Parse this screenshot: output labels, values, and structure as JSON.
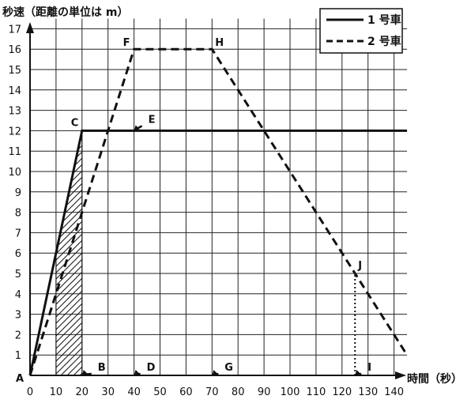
{
  "chart_data": {
    "type": "line",
    "ylabel": "秒速（距離の単位は m）",
    "xlabel": "時間（秒）",
    "xlim": [
      0,
      145
    ],
    "ylim": [
      0,
      17.5
    ],
    "x_ticks": [
      0,
      10,
      20,
      30,
      40,
      50,
      60,
      70,
      80,
      90,
      100,
      110,
      120,
      130,
      140
    ],
    "y_ticks": [
      1,
      2,
      3,
      4,
      5,
      6,
      7,
      8,
      9,
      10,
      11,
      12,
      13,
      14,
      15,
      16,
      17
    ],
    "grid": true,
    "legend_position": "top-right",
    "series": [
      {
        "name": "1 号車",
        "style": "solid",
        "x": [
          0,
          20,
          145
        ],
        "y": [
          0,
          12,
          12
        ]
      },
      {
        "name": "2 号車",
        "style": "dashed",
        "x": [
          0,
          40,
          70,
          145
        ],
        "y": [
          0,
          16,
          16,
          1
        ]
      }
    ],
    "hatched_region": {
      "x_from": 10,
      "x_to": 20
    },
    "vertical_dotted_line": {
      "x": 125,
      "y_from": 0,
      "y_to": 5
    },
    "points": [
      {
        "label": "A",
        "x": 0,
        "y": 0
      },
      {
        "label": "B",
        "x": 20,
        "y": 0
      },
      {
        "label": "C",
        "x": 20,
        "y": 12
      },
      {
        "label": "D",
        "x": 40,
        "y": 0
      },
      {
        "label": "E",
        "x": 40,
        "y": 12
      },
      {
        "label": "F",
        "x": 40,
        "y": 16
      },
      {
        "label": "G",
        "x": 70,
        "y": 0
      },
      {
        "label": "H",
        "x": 70,
        "y": 16
      },
      {
        "label": "I",
        "x": 125,
        "y": 0
      },
      {
        "label": "J",
        "x": 125,
        "y": 5
      }
    ]
  }
}
